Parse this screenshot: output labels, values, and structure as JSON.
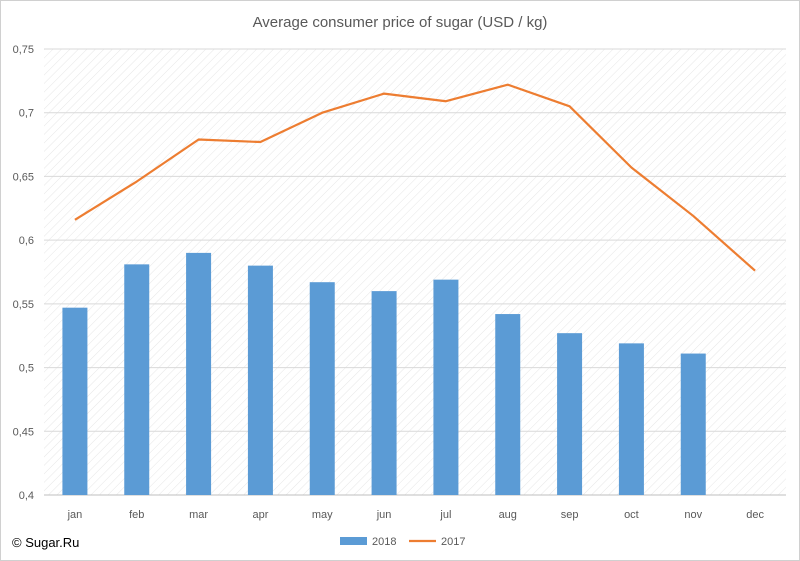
{
  "chart_data": {
    "type": "bar",
    "title": "Average consumer price of sugar (USD / kg)",
    "xlabel": "",
    "ylabel": "",
    "categories": [
      "jan",
      "feb",
      "mar",
      "apr",
      "may",
      "jun",
      "jul",
      "aug",
      "sep",
      "oct",
      "nov",
      "dec"
    ],
    "ylim": [
      0.4,
      0.75
    ],
    "yticks": [
      "0,4",
      "0,45",
      "0,5",
      "0,55",
      "0,6",
      "0,65",
      "0,7",
      "0,75"
    ],
    "ytick_values": [
      0.4,
      0.45,
      0.5,
      0.55,
      0.6,
      0.65,
      0.7,
      0.75
    ],
    "grid": true,
    "legend_position": "bottom",
    "series": [
      {
        "name": "2018",
        "type": "bar",
        "color": "#5b9bd5",
        "values": [
          0.547,
          0.581,
          0.59,
          0.58,
          0.567,
          0.56,
          0.569,
          0.542,
          0.527,
          0.519,
          0.511,
          null
        ]
      },
      {
        "name": "2017",
        "type": "line",
        "color": "#ed7d31",
        "values": [
          0.616,
          0.646,
          0.679,
          0.677,
          0.7,
          0.715,
          0.709,
          0.722,
          0.705,
          0.657,
          0.619,
          0.576
        ]
      }
    ]
  },
  "credit": "© Sugar.Ru"
}
